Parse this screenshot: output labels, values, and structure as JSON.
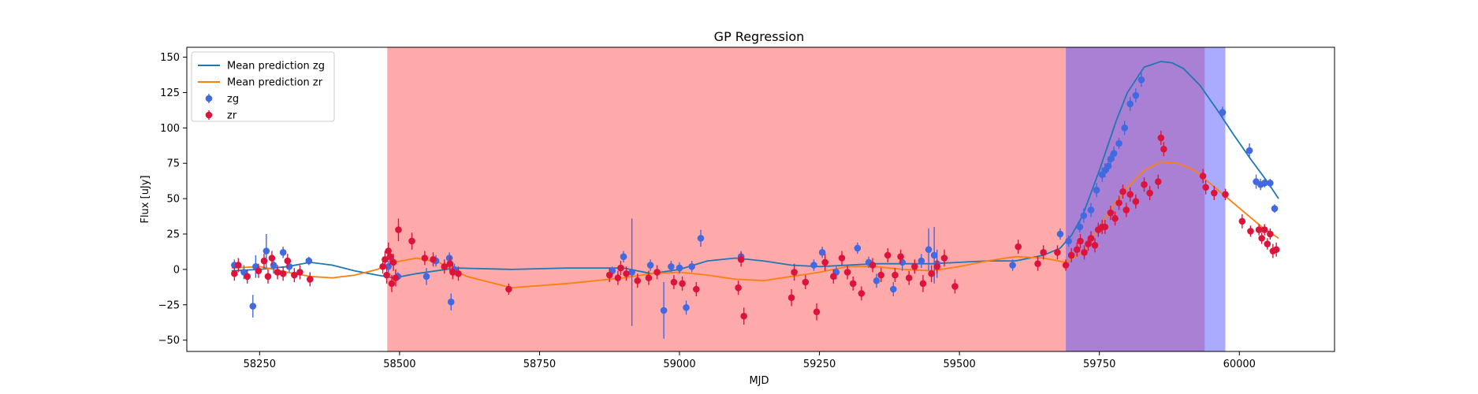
{
  "chart_data": {
    "type": "scatter",
    "title": "GP Regression",
    "xlabel": "MJD",
    "ylabel": "Flux [uJy]",
    "xlim": [
      58120,
      60170
    ],
    "ylim": [
      -58,
      157
    ],
    "xticks": [
      58250,
      58500,
      58750,
      59000,
      59250,
      59500,
      59750,
      60000
    ],
    "yticks": [
      -50,
      -25,
      0,
      25,
      50,
      75,
      100,
      125,
      150
    ],
    "legend_position": "upper-left",
    "colors": {
      "zg_line": "#1f77b4",
      "zr_line": "#ff7f0e",
      "zg_points": "#4169e1",
      "zr_points": "#dc143c",
      "shade_red": "#ff5555",
      "shade_blue": "#5555ff"
    },
    "shaded_regions": [
      {
        "x0": 58478,
        "x1": 59690,
        "color": "red"
      },
      {
        "x0": 59690,
        "x1": 59938,
        "color": "red"
      },
      {
        "x0": 59690,
        "x1": 59975,
        "color": "blue"
      }
    ],
    "lines": [
      {
        "name": "Mean prediction zg",
        "color": "#1f77b4",
        "x": [
          58200,
          58250,
          58300,
          58340,
          58380,
          58420,
          58460,
          58490,
          58530,
          58600,
          58700,
          58800,
          58900,
          58950,
          59000,
          59050,
          59100,
          59150,
          59200,
          59250,
          59300,
          59350,
          59400,
          59450,
          59500,
          59550,
          59600,
          59650,
          59680,
          59700,
          59720,
          59750,
          59780,
          59800,
          59830,
          59860,
          59880,
          59900,
          59930,
          59960,
          59990,
          60020,
          60050,
          60070
        ],
        "y": [
          -1,
          0,
          2,
          5,
          3,
          -1,
          -4,
          -6,
          -3,
          1,
          0,
          1,
          1,
          -3,
          0,
          6,
          8,
          6,
          3,
          2,
          3,
          4,
          4,
          4,
          5,
          6,
          6,
          10,
          15,
          24,
          38,
          70,
          105,
          125,
          143,
          147,
          146,
          142,
          130,
          113,
          95,
          78,
          62,
          50
        ]
      },
      {
        "name": "Mean prediction zr",
        "color": "#ff7f0e",
        "x": [
          58200,
          58250,
          58300,
          58340,
          58380,
          58420,
          58460,
          58490,
          58530,
          58570,
          58620,
          58700,
          58800,
          58900,
          58950,
          59000,
          59050,
          59100,
          59150,
          59200,
          59250,
          59300,
          59350,
          59400,
          59450,
          59500,
          59550,
          59600,
          59650,
          59690,
          59720,
          59750,
          59780,
          59800,
          59830,
          59860,
          59890,
          59920,
          59950,
          59980,
          60010,
          60040,
          60070
        ],
        "y": [
          1,
          2,
          -2,
          -5,
          -6,
          -4,
          0,
          5,
          8,
          5,
          -5,
          -13,
          -10,
          -6,
          -3,
          -2,
          -4,
          -7,
          -8,
          -5,
          -2,
          2,
          2,
          0,
          -1,
          2,
          6,
          9,
          8,
          5,
          12,
          30,
          48,
          58,
          70,
          76,
          75,
          70,
          60,
          50,
          40,
          30,
          22
        ]
      }
    ],
    "series": [
      {
        "name": "zg",
        "color": "#4169e1",
        "points": [
          [
            58205,
            3,
            4
          ],
          [
            58222,
            -2,
            5
          ],
          [
            58238,
            -26,
            8
          ],
          [
            58243,
            2,
            8
          ],
          [
            58262,
            13,
            12
          ],
          [
            58275,
            3,
            6
          ],
          [
            58292,
            12,
            4
          ],
          [
            58303,
            2,
            4
          ],
          [
            58338,
            6,
            3
          ],
          [
            58480,
            2,
            4
          ],
          [
            58497,
            -5,
            3
          ],
          [
            58548,
            -5,
            6
          ],
          [
            58565,
            6,
            4
          ],
          [
            58589,
            8,
            4
          ],
          [
            58592,
            -23,
            6
          ],
          [
            58598,
            0,
            4
          ],
          [
            58880,
            -1,
            3
          ],
          [
            58900,
            9,
            4
          ],
          [
            58915,
            -2,
            38
          ],
          [
            58948,
            3,
            4
          ],
          [
            58972,
            -29,
            20
          ],
          [
            58985,
            2,
            4
          ],
          [
            59000,
            1,
            4
          ],
          [
            59012,
            -27,
            5
          ],
          [
            59022,
            2,
            4
          ],
          [
            59038,
            22,
            6
          ],
          [
            59110,
            9,
            4
          ],
          [
            59240,
            3,
            4
          ],
          [
            59255,
            12,
            4
          ],
          [
            59280,
            -2,
            5
          ],
          [
            59318,
            15,
            4
          ],
          [
            59338,
            5,
            4
          ],
          [
            59352,
            -8,
            5
          ],
          [
            59382,
            -14,
            5
          ],
          [
            59398,
            5,
            6
          ],
          [
            59432,
            6,
            5
          ],
          [
            59445,
            14,
            15
          ],
          [
            59455,
            10,
            20
          ],
          [
            59460,
            4,
            10
          ],
          [
            59595,
            3,
            4
          ],
          [
            59680,
            25,
            4
          ],
          [
            59695,
            20,
            4
          ],
          [
            59715,
            30,
            4
          ],
          [
            59722,
            38,
            5
          ],
          [
            59735,
            42,
            5
          ],
          [
            59745,
            56,
            5
          ],
          [
            59755,
            67,
            5
          ],
          [
            59760,
            70,
            5
          ],
          [
            59766,
            73,
            4
          ],
          [
            59770,
            78,
            4
          ],
          [
            59776,
            82,
            5
          ],
          [
            59785,
            89,
            4
          ],
          [
            59795,
            100,
            5
          ],
          [
            59805,
            117,
            5
          ],
          [
            59815,
            123,
            5
          ],
          [
            59825,
            134,
            5
          ],
          [
            59970,
            111,
            4
          ],
          [
            60018,
            84,
            5
          ],
          [
            60030,
            62,
            5
          ],
          [
            60038,
            60,
            4
          ],
          [
            60045,
            61,
            3
          ],
          [
            60055,
            61,
            3
          ],
          [
            60063,
            43,
            3
          ]
        ]
      },
      {
        "name": "zr",
        "color": "#dc143c",
        "points": [
          [
            58205,
            -3,
            5
          ],
          [
            58212,
            3,
            5
          ],
          [
            58228,
            -5,
            5
          ],
          [
            58248,
            -1,
            5
          ],
          [
            58258,
            6,
            5
          ],
          [
            58265,
            -5,
            5
          ],
          [
            58272,
            8,
            5
          ],
          [
            58282,
            -2,
            5
          ],
          [
            58292,
            -3,
            5
          ],
          [
            58300,
            6,
            5
          ],
          [
            58312,
            -4,
            5
          ],
          [
            58322,
            -2,
            5
          ],
          [
            58340,
            -7,
            5
          ],
          [
            58470,
            2,
            5
          ],
          [
            58474,
            7,
            6
          ],
          [
            58477,
            -4,
            6
          ],
          [
            58480,
            13,
            6
          ],
          [
            58483,
            9,
            6
          ],
          [
            58486,
            -10,
            6
          ],
          [
            58489,
            5,
            6
          ],
          [
            58493,
            -6,
            6
          ],
          [
            58498,
            28,
            8
          ],
          [
            58522,
            20,
            6
          ],
          [
            58545,
            8,
            5
          ],
          [
            58560,
            7,
            5
          ],
          [
            58580,
            2,
            5
          ],
          [
            58590,
            4,
            5
          ],
          [
            58595,
            -2,
            5
          ],
          [
            58605,
            -3,
            5
          ],
          [
            58695,
            -14,
            4
          ],
          [
            58875,
            -4,
            5
          ],
          [
            58890,
            -6,
            5
          ],
          [
            58895,
            1,
            5
          ],
          [
            58905,
            -3,
            5
          ],
          [
            58925,
            -8,
            5
          ],
          [
            58945,
            -6,
            5
          ],
          [
            58960,
            -2,
            5
          ],
          [
            58990,
            -9,
            5
          ],
          [
            59005,
            -10,
            5
          ],
          [
            59030,
            -14,
            5
          ],
          [
            59105,
            -13,
            5
          ],
          [
            59110,
            7,
            5
          ],
          [
            59115,
            -33,
            6
          ],
          [
            59200,
            -20,
            6
          ],
          [
            59205,
            -2,
            6
          ],
          [
            59225,
            -9,
            5
          ],
          [
            59245,
            -30,
            6
          ],
          [
            59260,
            5,
            6
          ],
          [
            59275,
            -5,
            5
          ],
          [
            59290,
            8,
            5
          ],
          [
            59300,
            -2,
            5
          ],
          [
            59310,
            -10,
            5
          ],
          [
            59325,
            -17,
            5
          ],
          [
            59345,
            3,
            5
          ],
          [
            59360,
            -4,
            5
          ],
          [
            59372,
            10,
            5
          ],
          [
            59385,
            -4,
            5
          ],
          [
            59395,
            9,
            5
          ],
          [
            59410,
            -6,
            5
          ],
          [
            59420,
            2,
            5
          ],
          [
            59435,
            -10,
            6
          ],
          [
            59450,
            -3,
            6
          ],
          [
            59460,
            2,
            5
          ],
          [
            59473,
            8,
            6
          ],
          [
            59492,
            -12,
            5
          ],
          [
            59605,
            16,
            5
          ],
          [
            59640,
            4,
            5
          ],
          [
            59650,
            12,
            5
          ],
          [
            59675,
            12,
            5
          ],
          [
            59690,
            3,
            4
          ],
          [
            59700,
            10,
            5
          ],
          [
            59710,
            14,
            5
          ],
          [
            59716,
            20,
            5
          ],
          [
            59723,
            12,
            5
          ],
          [
            59730,
            18,
            5
          ],
          [
            59735,
            22,
            5
          ],
          [
            59742,
            17,
            5
          ],
          [
            59748,
            28,
            5
          ],
          [
            59755,
            30,
            5
          ],
          [
            59760,
            30,
            5
          ],
          [
            59770,
            40,
            5
          ],
          [
            59778,
            36,
            5
          ],
          [
            59785,
            47,
            5
          ],
          [
            59792,
            55,
            5
          ],
          [
            59798,
            42,
            5
          ],
          [
            59805,
            53,
            5
          ],
          [
            59815,
            48,
            5
          ],
          [
            59830,
            60,
            5
          ],
          [
            59840,
            54,
            5
          ],
          [
            59855,
            62,
            5
          ],
          [
            59860,
            93,
            5
          ],
          [
            59865,
            85,
            5
          ],
          [
            59935,
            66,
            5
          ],
          [
            59940,
            58,
            5
          ],
          [
            59955,
            54,
            5
          ],
          [
            59975,
            53,
            4
          ],
          [
            60005,
            34,
            5
          ],
          [
            60020,
            27,
            4
          ],
          [
            60035,
            28,
            4
          ],
          [
            60040,
            22,
            4
          ],
          [
            60045,
            28,
            4
          ],
          [
            60050,
            18,
            4
          ],
          [
            60055,
            25,
            4
          ],
          [
            60060,
            13,
            5
          ],
          [
            60066,
            14,
            5
          ]
        ]
      }
    ]
  }
}
